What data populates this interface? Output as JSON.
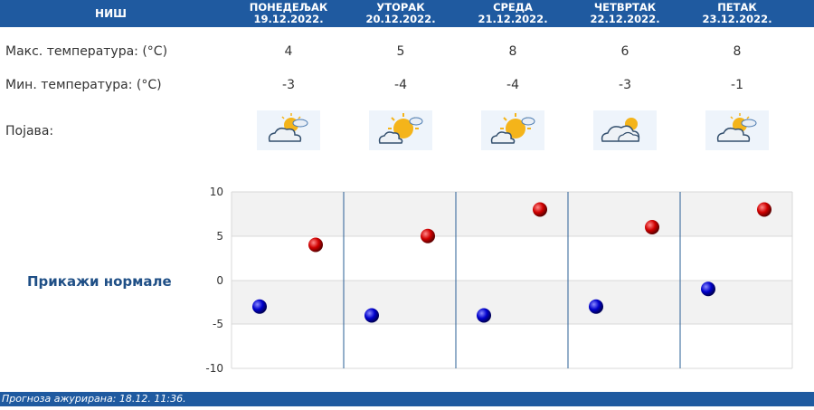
{
  "header": {
    "city": "НИШ",
    "days": [
      {
        "name": "ПОНЕДЕЉАК",
        "date": "19.12.2022."
      },
      {
        "name": "УТОРАК",
        "date": "20.12.2022."
      },
      {
        "name": "СРЕДА",
        "date": "21.12.2022."
      },
      {
        "name": "ЧЕТВРТАК",
        "date": "22.12.2022."
      },
      {
        "name": "ПЕТАК",
        "date": "23.12.2022."
      }
    ]
  },
  "rows": {
    "max_label": "Макс. температура: (°C)",
    "min_label": "Мин. температура: (°C)",
    "phenomenon_label": "Појава:",
    "max_values": [
      "4",
      "5",
      "8",
      "6",
      "8"
    ],
    "min_values": [
      "-3",
      "-4",
      "-4",
      "-3",
      "-1"
    ],
    "icons": [
      "partly-cloudy-icon",
      "mostly-sunny-icon",
      "mostly-sunny-icon",
      "cloudy-sunny-icon",
      "partly-cloudy-icon"
    ]
  },
  "show_normals": "Прикажи нормале",
  "footer": "Прогноза ажурирана:  18.12. 11:36.",
  "colors": {
    "header": "#1f5aa0",
    "max_dot": "#d00000",
    "min_dot": "#0000cc",
    "divider": "#2a5f95"
  },
  "chart_data": {
    "type": "scatter",
    "categories": [
      "ПОНЕДЕЉАК",
      "УТОРАК",
      "СРЕДА",
      "ЧЕТВРТАК",
      "ПЕТАК"
    ],
    "series": [
      {
        "values": [
          4,
          5,
          8,
          6,
          8
        ],
        "color": "#d00000"
      },
      {
        "values": [
          -3,
          -4,
          -4,
          -3,
          -1
        ],
        "color": "#0000cc"
      }
    ],
    "yticks": [
      "10",
      "5",
      "0",
      "-5",
      "-10"
    ],
    "ylim": [
      -10,
      10
    ],
    "grid": true
  }
}
